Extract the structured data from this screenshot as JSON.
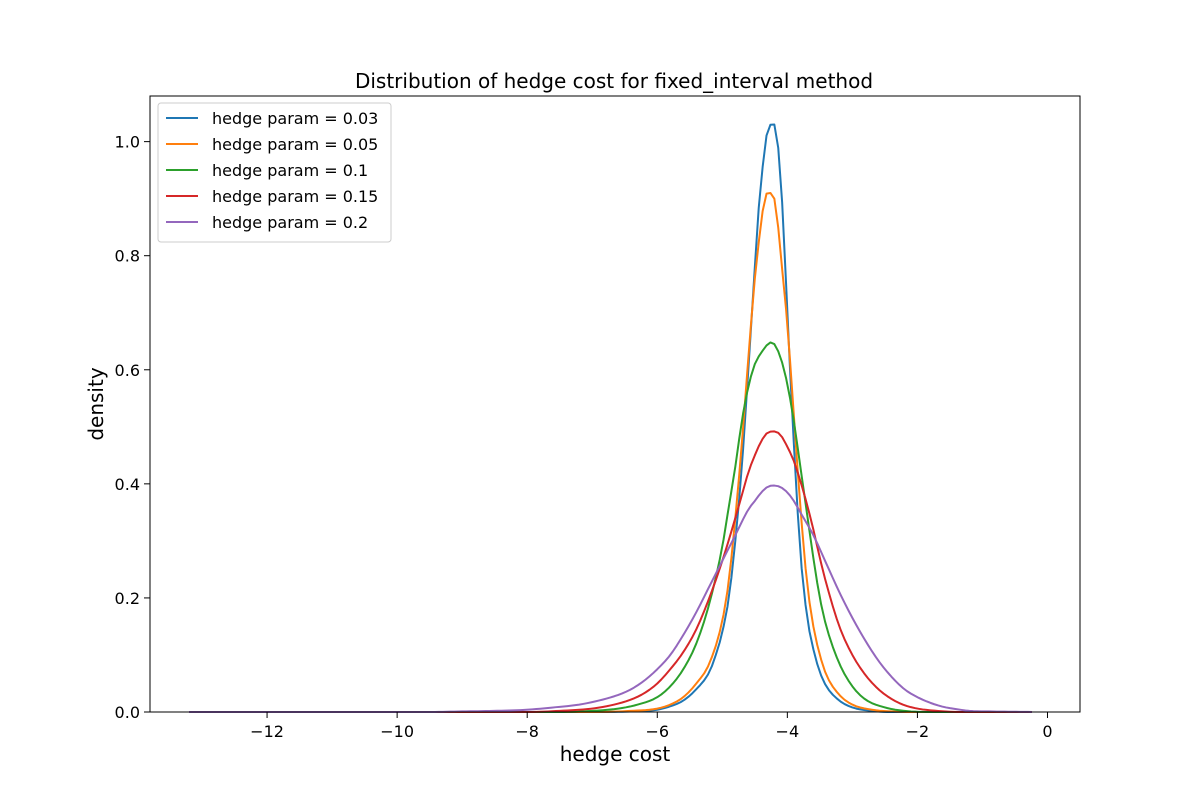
{
  "chart_data": {
    "type": "line",
    "title": "Distribution of hedge cost for fixed_interval method",
    "xlabel": "hedge cost",
    "ylabel": "density",
    "xlim": [
      -13.8,
      0.5
    ],
    "ylim": [
      0,
      1.08
    ],
    "x_ticks": [
      -12,
      -10,
      -8,
      -6,
      -4,
      -2,
      0
    ],
    "x_tick_labels": [
      "−12",
      "−10",
      "−8",
      "−6",
      "−4",
      "−2",
      "0"
    ],
    "y_ticks": [
      0,
      0.2,
      0.4,
      0.6,
      0.8,
      1.0
    ],
    "y_tick_labels": [
      "0.0",
      "0.2",
      "0.4",
      "0.6",
      "0.8",
      "1.0"
    ],
    "grid": false,
    "legend_position": "top-left",
    "x_range": [
      -13.2,
      -0.2
    ],
    "series": [
      {
        "name": "hedge param = 0.03",
        "color": "#1f77b4",
        "points": [
          [
            -13.2,
            0
          ],
          [
            -7.0,
            0
          ],
          [
            -6.4,
            0.001
          ],
          [
            -6.0,
            0.004
          ],
          [
            -5.8,
            0.01
          ],
          [
            -5.6,
            0.02
          ],
          [
            -5.4,
            0.04
          ],
          [
            -5.2,
            0.07
          ],
          [
            -5.1,
            0.1
          ],
          [
            -5.0,
            0.14
          ],
          [
            -4.9,
            0.2
          ],
          [
            -4.8,
            0.3
          ],
          [
            -4.7,
            0.43
          ],
          [
            -4.6,
            0.6
          ],
          [
            -4.5,
            0.78
          ],
          [
            -4.45,
            0.87
          ],
          [
            -4.4,
            0.93
          ],
          [
            -4.35,
            0.99
          ],
          [
            -4.3,
            1.02
          ],
          [
            -4.25,
            1.03
          ],
          [
            -4.2,
            1.03
          ],
          [
            -4.15,
            1.0
          ],
          [
            -4.1,
            0.93
          ],
          [
            -4.05,
            0.83
          ],
          [
            -4.0,
            0.7
          ],
          [
            -3.9,
            0.47
          ],
          [
            -3.8,
            0.28
          ],
          [
            -3.7,
            0.17
          ],
          [
            -3.6,
            0.11
          ],
          [
            -3.5,
            0.07
          ],
          [
            -3.4,
            0.045
          ],
          [
            -3.2,
            0.02
          ],
          [
            -3.0,
            0.008
          ],
          [
            -2.7,
            0.002
          ],
          [
            -2.4,
            0
          ],
          [
            -0.2,
            0
          ]
        ]
      },
      {
        "name": "hedge param = 0.05",
        "color": "#ff7f0e",
        "points": [
          [
            -13.2,
            0
          ],
          [
            -7.0,
            0
          ],
          [
            -6.4,
            0.002
          ],
          [
            -6.0,
            0.006
          ],
          [
            -5.8,
            0.013
          ],
          [
            -5.6,
            0.026
          ],
          [
            -5.4,
            0.05
          ],
          [
            -5.2,
            0.085
          ],
          [
            -5.0,
            0.16
          ],
          [
            -4.9,
            0.23
          ],
          [
            -4.8,
            0.34
          ],
          [
            -4.7,
            0.47
          ],
          [
            -4.6,
            0.62
          ],
          [
            -4.5,
            0.76
          ],
          [
            -4.4,
            0.86
          ],
          [
            -4.35,
            0.9
          ],
          [
            -4.3,
            0.91
          ],
          [
            -4.25,
            0.91
          ],
          [
            -4.2,
            0.9
          ],
          [
            -4.15,
            0.86
          ],
          [
            -4.1,
            0.8
          ],
          [
            -4.0,
            0.68
          ],
          [
            -3.9,
            0.52
          ],
          [
            -3.8,
            0.36
          ],
          [
            -3.7,
            0.23
          ],
          [
            -3.6,
            0.15
          ],
          [
            -3.5,
            0.1
          ],
          [
            -3.4,
            0.065
          ],
          [
            -3.2,
            0.03
          ],
          [
            -3.0,
            0.013
          ],
          [
            -2.7,
            0.004
          ],
          [
            -2.4,
            0.001
          ],
          [
            -2.0,
            0
          ],
          [
            -0.2,
            0
          ]
        ]
      },
      {
        "name": "hedge param = 0.1",
        "color": "#2ca02c",
        "points": [
          [
            -13.2,
            0
          ],
          [
            -7.5,
            0
          ],
          [
            -7.0,
            0.002
          ],
          [
            -6.6,
            0.006
          ],
          [
            -6.3,
            0.013
          ],
          [
            -6.0,
            0.026
          ],
          [
            -5.8,
            0.045
          ],
          [
            -5.6,
            0.075
          ],
          [
            -5.4,
            0.12
          ],
          [
            -5.2,
            0.19
          ],
          [
            -5.0,
            0.29
          ],
          [
            -4.9,
            0.36
          ],
          [
            -4.8,
            0.43
          ],
          [
            -4.7,
            0.51
          ],
          [
            -4.6,
            0.57
          ],
          [
            -4.5,
            0.61
          ],
          [
            -4.4,
            0.63
          ],
          [
            -4.3,
            0.645
          ],
          [
            -4.25,
            0.648
          ],
          [
            -4.2,
            0.645
          ],
          [
            -4.1,
            0.62
          ],
          [
            -4.0,
            0.575
          ],
          [
            -3.9,
            0.51
          ],
          [
            -3.8,
            0.43
          ],
          [
            -3.7,
            0.35
          ],
          [
            -3.6,
            0.27
          ],
          [
            -3.5,
            0.2
          ],
          [
            -3.4,
            0.15
          ],
          [
            -3.2,
            0.085
          ],
          [
            -3.0,
            0.045
          ],
          [
            -2.8,
            0.022
          ],
          [
            -2.5,
            0.008
          ],
          [
            -2.2,
            0.002
          ],
          [
            -1.8,
            0
          ],
          [
            -0.2,
            0
          ]
        ]
      },
      {
        "name": "hedge param = 0.15",
        "color": "#d62728",
        "points": [
          [
            -13.2,
            0
          ],
          [
            -8.0,
            0
          ],
          [
            -7.5,
            0.002
          ],
          [
            -7.0,
            0.006
          ],
          [
            -6.7,
            0.012
          ],
          [
            -6.4,
            0.022
          ],
          [
            -6.2,
            0.033
          ],
          [
            -6.0,
            0.05
          ],
          [
            -5.8,
            0.075
          ],
          [
            -5.6,
            0.105
          ],
          [
            -5.4,
            0.145
          ],
          [
            -5.2,
            0.2
          ],
          [
            -5.0,
            0.265
          ],
          [
            -4.8,
            0.34
          ],
          [
            -4.7,
            0.38
          ],
          [
            -4.6,
            0.42
          ],
          [
            -4.5,
            0.45
          ],
          [
            -4.4,
            0.475
          ],
          [
            -4.3,
            0.49
          ],
          [
            -4.2,
            0.492
          ],
          [
            -4.1,
            0.485
          ],
          [
            -4.0,
            0.465
          ],
          [
            -3.9,
            0.44
          ],
          [
            -3.8,
            0.405
          ],
          [
            -3.7,
            0.365
          ],
          [
            -3.6,
            0.32
          ],
          [
            -3.5,
            0.27
          ],
          [
            -3.4,
            0.225
          ],
          [
            -3.2,
            0.15
          ],
          [
            -3.0,
            0.1
          ],
          [
            -2.8,
            0.065
          ],
          [
            -2.6,
            0.04
          ],
          [
            -2.4,
            0.023
          ],
          [
            -2.2,
            0.012
          ],
          [
            -2.0,
            0.006
          ],
          [
            -1.7,
            0.002
          ],
          [
            -1.3,
            0
          ],
          [
            -0.2,
            0
          ]
        ]
      },
      {
        "name": "hedge param = 0.2",
        "color": "#9467bd",
        "points": [
          [
            -13.2,
            0
          ],
          [
            -9.5,
            0
          ],
          [
            -9.0,
            0.001
          ],
          [
            -8.5,
            0.002
          ],
          [
            -8.0,
            0.004
          ],
          [
            -7.6,
            0.008
          ],
          [
            -7.2,
            0.013
          ],
          [
            -6.9,
            0.02
          ],
          [
            -6.6,
            0.03
          ],
          [
            -6.4,
            0.04
          ],
          [
            -6.2,
            0.055
          ],
          [
            -6.0,
            0.075
          ],
          [
            -5.8,
            0.1
          ],
          [
            -5.6,
            0.135
          ],
          [
            -5.4,
            0.175
          ],
          [
            -5.2,
            0.22
          ],
          [
            -5.0,
            0.265
          ],
          [
            -4.8,
            0.31
          ],
          [
            -4.6,
            0.355
          ],
          [
            -4.5,
            0.37
          ],
          [
            -4.4,
            0.385
          ],
          [
            -4.3,
            0.395
          ],
          [
            -4.2,
            0.397
          ],
          [
            -4.1,
            0.394
          ],
          [
            -4.0,
            0.385
          ],
          [
            -3.9,
            0.37
          ],
          [
            -3.8,
            0.35
          ],
          [
            -3.6,
            0.31
          ],
          [
            -3.4,
            0.26
          ],
          [
            -3.2,
            0.21
          ],
          [
            -3.0,
            0.165
          ],
          [
            -2.8,
            0.125
          ],
          [
            -2.6,
            0.09
          ],
          [
            -2.4,
            0.062
          ],
          [
            -2.2,
            0.04
          ],
          [
            -2.0,
            0.026
          ],
          [
            -1.8,
            0.016
          ],
          [
            -1.6,
            0.009
          ],
          [
            -1.4,
            0.005
          ],
          [
            -1.2,
            0.002
          ],
          [
            -0.9,
            0.001
          ],
          [
            -0.2,
            0
          ]
        ]
      }
    ]
  }
}
